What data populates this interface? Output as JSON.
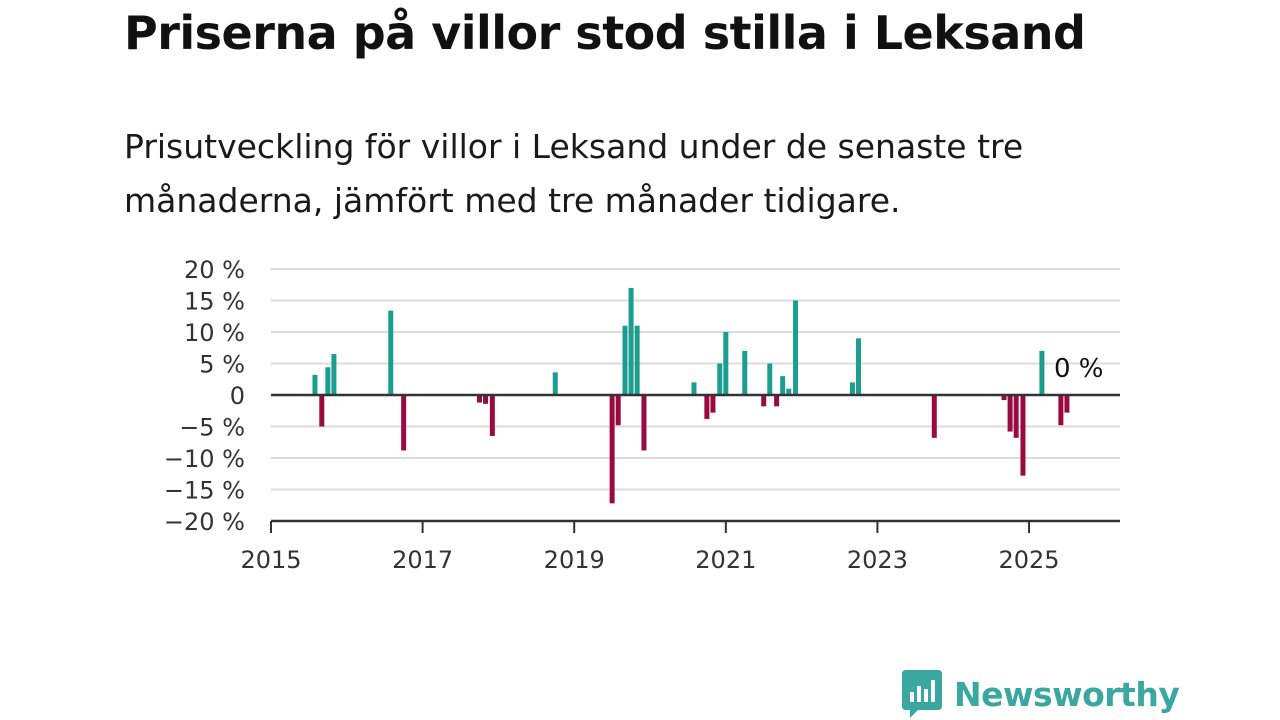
{
  "header": {
    "title": "Priserna på villor stod stilla i Leksand",
    "subtitle": "Prisutveckling för villor i Leksand under de senaste tre månaderna, jämfört med tre månader tidigare."
  },
  "brand": {
    "name": "Newsworthy",
    "icon": "newsworthy-logo-icon",
    "color": "#3aa7a0"
  },
  "colors": {
    "positive": "#1b9e8f",
    "negative": "#990a40",
    "grid": "#dcdcdc",
    "axis": "#333333"
  },
  "chart_data": {
    "type": "bar",
    "title": "Priserna på villor stod stilla i Leksand",
    "xlabel": "",
    "ylabel": "",
    "xlim": [
      2015,
      2026.2
    ],
    "ylim": [
      -20,
      20
    ],
    "x_ticks": [
      2015,
      2017,
      2019,
      2021,
      2023,
      2025
    ],
    "x_tick_labels": [
      "2015",
      "2017",
      "2019",
      "2021",
      "2023",
      "2025"
    ],
    "y_ticks": [
      20,
      15,
      10,
      5,
      0,
      -5,
      -10,
      -15,
      -20
    ],
    "y_tick_labels": [
      "20 %",
      "15 %",
      "10 %",
      "5 %",
      "0",
      "−5 %",
      "−10 %",
      "−15 %",
      "−20 %"
    ],
    "grid": true,
    "end_label": "0 %",
    "end_value": 0,
    "series": [
      {
        "points": [
          {
            "x": 2015.58,
            "y": 3.2
          },
          {
            "x": 2015.67,
            "y": -5.0
          },
          {
            "x": 2015.75,
            "y": 4.4
          },
          {
            "x": 2015.83,
            "y": 6.5
          },
          {
            "x": 2016.58,
            "y": 13.4
          },
          {
            "x": 2016.75,
            "y": -8.8
          },
          {
            "x": 2017.75,
            "y": -1.2
          },
          {
            "x": 2017.83,
            "y": -1.4
          },
          {
            "x": 2017.92,
            "y": -6.5
          },
          {
            "x": 2018.75,
            "y": 3.6
          },
          {
            "x": 2019.5,
            "y": -17.2
          },
          {
            "x": 2019.58,
            "y": -4.8
          },
          {
            "x": 2019.67,
            "y": 11.0
          },
          {
            "x": 2019.75,
            "y": 17.0
          },
          {
            "x": 2019.83,
            "y": 11.0
          },
          {
            "x": 2019.92,
            "y": -8.8
          },
          {
            "x": 2020.58,
            "y": 2.0
          },
          {
            "x": 2020.75,
            "y": -3.8
          },
          {
            "x": 2020.83,
            "y": -2.8
          },
          {
            "x": 2020.92,
            "y": 5.0
          },
          {
            "x": 2021.0,
            "y": 10.0
          },
          {
            "x": 2021.25,
            "y": 7.0
          },
          {
            "x": 2021.5,
            "y": -1.8
          },
          {
            "x": 2021.58,
            "y": 5.0
          },
          {
            "x": 2021.67,
            "y": -1.8
          },
          {
            "x": 2021.75,
            "y": 3.0
          },
          {
            "x": 2021.83,
            "y": 1.0
          },
          {
            "x": 2021.92,
            "y": 15.0
          },
          {
            "x": 2022.67,
            "y": 2.0
          },
          {
            "x": 2022.75,
            "y": 9.0
          },
          {
            "x": 2023.75,
            "y": -6.8
          },
          {
            "x": 2024.67,
            "y": -0.8
          },
          {
            "x": 2024.75,
            "y": -5.8
          },
          {
            "x": 2024.83,
            "y": -6.8
          },
          {
            "x": 2024.92,
            "y": -12.8
          },
          {
            "x": 2025.17,
            "y": 7.0
          },
          {
            "x": 2025.42,
            "y": -4.8
          },
          {
            "x": 2025.5,
            "y": -2.8
          }
        ]
      }
    ]
  }
}
